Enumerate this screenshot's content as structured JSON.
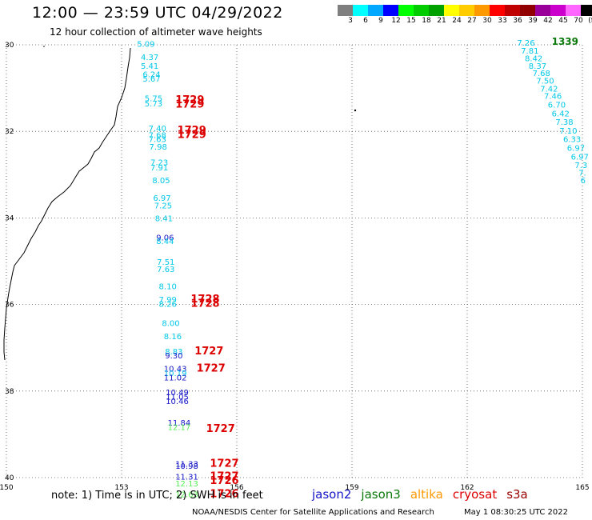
{
  "header": {
    "title": "12:00 — 23:59 UTC 04/29/2022",
    "subtitle": "12 hour collection of altimeter wave heights"
  },
  "colorbar": {
    "colors": [
      "#7f7f7f",
      "#00ffff",
      "#00a8ff",
      "#0000ff",
      "#00ff00",
      "#00cc00",
      "#00a000",
      "#ffff00",
      "#ffcc00",
      "#ff9900",
      "#ff0000",
      "#c00000",
      "#900000",
      "#990099",
      "#cc00cc",
      "#ff66ff",
      "#000000"
    ],
    "labels": [
      "3",
      "6",
      "9",
      "12",
      "15",
      "18",
      "21",
      "24",
      "27",
      "30",
      "33",
      "36",
      "39",
      "42",
      "45",
      "70",
      "(ft)"
    ]
  },
  "axes": {
    "lon_range": [
      150,
      165
    ],
    "lat_range": [
      -40,
      -30
    ],
    "lon_ticks": [
      "150",
      "153",
      "156",
      "159",
      "162",
      "165"
    ],
    "lat_ticks": [
      "30",
      "32",
      "34",
      "36",
      "38",
      "40"
    ],
    "lat_tick_values": [
      -30,
      -32,
      -34,
      -36,
      -38,
      -40
    ],
    "lon_tick_values": [
      150,
      153,
      156,
      159,
      162,
      165
    ]
  },
  "colors": {
    "cyan": "#00c8e8",
    "blue": "#1414c8",
    "green": "#55ee55",
    "red": "#dd0000",
    "darkgreen": "#0a7a0a",
    "orange": "#ff9900",
    "maroon": "#990000"
  },
  "tracks": {
    "west": [
      {
        "lon": 153.4,
        "lat": -30.05,
        "text": "5.09",
        "c": "cyan"
      },
      {
        "lon": 153.5,
        "lat": -30.35,
        "text": "4.37",
        "c": "cyan"
      },
      {
        "lon": 153.5,
        "lat": -30.55,
        "text": "5.41",
        "c": "cyan"
      },
      {
        "lon": 153.55,
        "lat": -30.75,
        "text": "6.24",
        "c": "cyan"
      },
      {
        "lon": 153.55,
        "lat": -30.85,
        "text": "5.67",
        "c": "cyan"
      },
      {
        "lon": 153.6,
        "lat": -31.3,
        "text": "5.75",
        "c": "cyan"
      },
      {
        "lon": 153.6,
        "lat": -31.42,
        "text": "5.73",
        "c": "cyan"
      },
      {
        "lon": 153.7,
        "lat": -32.0,
        "text": "7.40",
        "c": "cyan"
      },
      {
        "lon": 153.7,
        "lat": -32.15,
        "text": "7.68",
        "c": "cyan"
      },
      {
        "lon": 153.7,
        "lat": -32.25,
        "text": "7.63",
        "c": "cyan"
      },
      {
        "lon": 153.72,
        "lat": -32.42,
        "text": "7.98",
        "c": "cyan"
      },
      {
        "lon": 153.75,
        "lat": -32.78,
        "text": "7.23",
        "c": "cyan"
      },
      {
        "lon": 153.75,
        "lat": -32.9,
        "text": "7.91",
        "c": "cyan"
      },
      {
        "lon": 153.8,
        "lat": -33.2,
        "text": "8.05",
        "c": "cyan"
      },
      {
        "lon": 153.82,
        "lat": -33.6,
        "text": "6.97",
        "c": "cyan"
      },
      {
        "lon": 153.85,
        "lat": -33.78,
        "text": "7.25",
        "c": "cyan"
      },
      {
        "lon": 153.87,
        "lat": -34.08,
        "text": "8.41",
        "c": "cyan"
      },
      {
        "lon": 153.9,
        "lat": -34.52,
        "text": "9.06",
        "c": "blue"
      },
      {
        "lon": 153.9,
        "lat": -34.6,
        "text": "8.44",
        "c": "cyan"
      },
      {
        "lon": 153.92,
        "lat": -35.08,
        "text": "7.51",
        "c": "cyan"
      },
      {
        "lon": 153.92,
        "lat": -35.25,
        "text": "7.63",
        "c": "cyan"
      },
      {
        "lon": 153.97,
        "lat": -35.65,
        "text": "8.10",
        "c": "cyan"
      },
      {
        "lon": 153.97,
        "lat": -35.95,
        "text": "7.99",
        "c": "cyan"
      },
      {
        "lon": 153.97,
        "lat": -36.05,
        "text": "8.26",
        "c": "cyan"
      },
      {
        "lon": 154.05,
        "lat": -36.5,
        "text": "8.00",
        "c": "cyan"
      },
      {
        "lon": 154.1,
        "lat": -36.8,
        "text": "8.16",
        "c": "cyan"
      },
      {
        "lon": 154.13,
        "lat": -37.15,
        "text": "8.83",
        "c": "cyan"
      },
      {
        "lon": 154.13,
        "lat": -37.25,
        "text": "9.30",
        "c": "blue"
      },
      {
        "lon": 154.1,
        "lat": -37.55,
        "text": "10.43",
        "c": "blue"
      },
      {
        "lon": 154.1,
        "lat": -37.65,
        "text": "10.19",
        "c": "cyan"
      },
      {
        "lon": 154.1,
        "lat": -37.75,
        "text": "11.02",
        "c": "blue"
      },
      {
        "lon": 154.15,
        "lat": -38.1,
        "text": "10.49",
        "c": "blue"
      },
      {
        "lon": 154.15,
        "lat": -38.2,
        "text": "11.05",
        "c": "blue"
      },
      {
        "lon": 154.15,
        "lat": -38.3,
        "text": "10.46",
        "c": "blue"
      },
      {
        "lon": 154.2,
        "lat": -38.8,
        "text": "11.84",
        "c": "blue"
      },
      {
        "lon": 154.2,
        "lat": -38.9,
        "text": "12.17",
        "c": "green"
      },
      {
        "lon": 154.4,
        "lat": -39.75,
        "text": "11.33",
        "c": "blue"
      },
      {
        "lon": 154.4,
        "lat": -39.8,
        "text": "10.98",
        "c": "blue"
      },
      {
        "lon": 154.4,
        "lat": -40.05,
        "text": "11.31",
        "c": "blue"
      },
      {
        "lon": 154.4,
        "lat": -40.2,
        "text": "12.13",
        "c": "green"
      },
      {
        "lon": 154.4,
        "lat": -40.45,
        "text": "12.63",
        "c": "green"
      }
    ],
    "west_times": [
      {
        "lon": 154.4,
        "lat": -31.35,
        "text": "1729",
        "c": "red"
      },
      {
        "lon": 154.4,
        "lat": -31.45,
        "text": "1729",
        "c": "red"
      },
      {
        "lon": 154.45,
        "lat": -32.05,
        "text": "1729",
        "c": "red"
      },
      {
        "lon": 154.45,
        "lat": -32.15,
        "text": "1729",
        "c": "red"
      },
      {
        "lon": 154.8,
        "lat": -35.95,
        "text": "1728",
        "c": "red"
      },
      {
        "lon": 154.8,
        "lat": -36.05,
        "text": "1728",
        "c": "red"
      },
      {
        "lon": 154.9,
        "lat": -37.15,
        "text": "1727",
        "c": "red"
      },
      {
        "lon": 154.95,
        "lat": -37.55,
        "text": "1727",
        "c": "red"
      },
      {
        "lon": 155.2,
        "lat": -38.95,
        "text": "1727",
        "c": "red"
      },
      {
        "lon": 155.3,
        "lat": -39.75,
        "text": "1727",
        "c": "red"
      },
      {
        "lon": 155.3,
        "lat": -40.05,
        "text": "1727",
        "c": "red"
      },
      {
        "lon": 155.3,
        "lat": -40.15,
        "text": "1726",
        "c": "red"
      },
      {
        "lon": 155.3,
        "lat": -40.45,
        "text": "1726",
        "c": "red"
      }
    ],
    "east": [
      {
        "lon": 163.3,
        "lat": -30.02,
        "text": "7.26",
        "c": "cyan"
      },
      {
        "lon": 163.4,
        "lat": -30.2,
        "text": "7.81",
        "c": "cyan"
      },
      {
        "lon": 163.5,
        "lat": -30.38,
        "text": "8.42",
        "c": "cyan"
      },
      {
        "lon": 163.6,
        "lat": -30.55,
        "text": "8.37",
        "c": "cyan"
      },
      {
        "lon": 163.7,
        "lat": -30.72,
        "text": "7.68",
        "c": "cyan"
      },
      {
        "lon": 163.8,
        "lat": -30.9,
        "text": "7.50",
        "c": "cyan"
      },
      {
        "lon": 163.9,
        "lat": -31.08,
        "text": "7.42",
        "c": "cyan"
      },
      {
        "lon": 164.0,
        "lat": -31.25,
        "text": "7.46",
        "c": "cyan"
      },
      {
        "lon": 164.1,
        "lat": -31.45,
        "text": "6.70",
        "c": "cyan"
      },
      {
        "lon": 164.2,
        "lat": -31.65,
        "text": "6.42",
        "c": "cyan"
      },
      {
        "lon": 164.3,
        "lat": -31.85,
        "text": "7.38",
        "c": "cyan"
      },
      {
        "lon": 164.4,
        "lat": -32.05,
        "text": "7.10",
        "c": "cyan"
      },
      {
        "lon": 164.5,
        "lat": -32.25,
        "text": "6.33",
        "c": "cyan"
      },
      {
        "lon": 164.6,
        "lat": -32.45,
        "text": "6.97",
        "c": "cyan"
      },
      {
        "lon": 164.7,
        "lat": -32.65,
        "text": "6.97",
        "c": "cyan"
      },
      {
        "lon": 164.8,
        "lat": -32.85,
        "text": "7.3",
        "c": "cyan"
      },
      {
        "lon": 164.9,
        "lat": -33.02,
        "text": "7.",
        "c": "cyan"
      },
      {
        "lon": 164.95,
        "lat": -33.2,
        "text": "6",
        "c": "cyan"
      }
    ],
    "east_time": {
      "lon": 164.2,
      "lat": -30.0,
      "text": "1339",
      "c": "darkgreen"
    }
  },
  "footer": {
    "note": "note: 1) Time is in UTC; 2) SWH is in feet",
    "legend": [
      {
        "text": "jason2",
        "c": "blue"
      },
      {
        "text": "jason3",
        "c": "darkgreen"
      },
      {
        "text": "altika",
        "c": "orange"
      },
      {
        "text": "cryosat",
        "c": "red"
      },
      {
        "text": "s3a",
        "c": "maroon"
      }
    ],
    "credit": "NOAA/NESDIS Center for Satellite Applications and Research",
    "datestamp": "May  1 08:30:25 UTC 2022"
  }
}
